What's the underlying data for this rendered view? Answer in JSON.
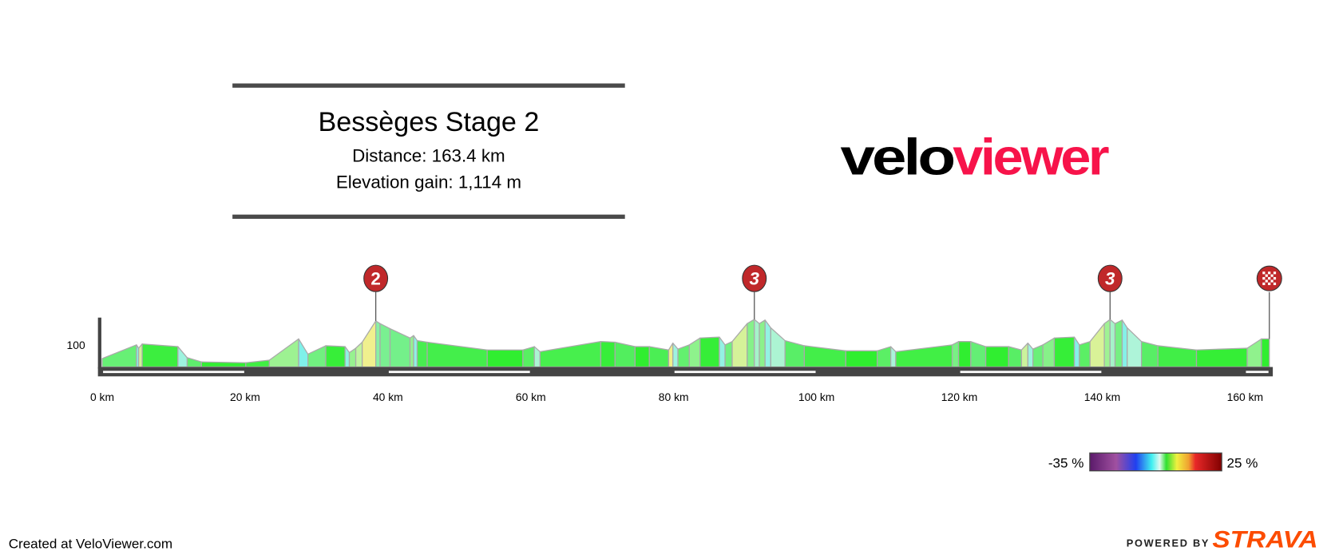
{
  "header": {
    "title": "Bessèges Stage 2",
    "distance": "Distance: 163.4 km",
    "elevation_gain": "Elevation gain: 1,114 m"
  },
  "logo": {
    "part1": "velo",
    "part2": "viewer",
    "color1": "#000000",
    "color2": "#f7134a"
  },
  "footer": {
    "created": "Created at VeloViewer.com",
    "powered_by": "POWERED BY",
    "strava": "STRAVA",
    "strava_color": "#fc4c02"
  },
  "legend": {
    "min_label": "-35 %",
    "max_label": "25 %",
    "stops": [
      "#5a1a6a",
      "#a050a0",
      "#2040f0",
      "#40f0f0",
      "#e0f8f0",
      "#30e030",
      "#f0f040",
      "#f0a030",
      "#e82828",
      "#800000"
    ]
  },
  "chart_data": {
    "type": "area",
    "title": "",
    "xlabel": "",
    "ylabel": "",
    "x_unit": "km",
    "y_unit": "m",
    "xlim": [
      0,
      163.4
    ],
    "x_ticks": [
      0,
      20,
      40,
      60,
      80,
      100,
      120,
      140,
      160
    ],
    "x_tick_labels": [
      "0 km",
      "20 km",
      "40 km",
      "60 km",
      "80 km",
      "100 km",
      "120 km",
      "140 km",
      "160 km"
    ],
    "y_tick_labels": [
      "100"
    ],
    "y_ticks": [
      100
    ],
    "color_by": "gradient %",
    "profile": [
      [
        0,
        38
      ],
      [
        4.8,
        100
      ],
      [
        5.1,
        85
      ],
      [
        5.6,
        104
      ],
      [
        10.6,
        92
      ],
      [
        11.9,
        42
      ],
      [
        13.9,
        23
      ],
      [
        20.1,
        19
      ],
      [
        23.4,
        31
      ],
      [
        27.5,
        127
      ],
      [
        28.8,
        58
      ],
      [
        31.3,
        96
      ],
      [
        34.0,
        92
      ],
      [
        34.6,
        65
      ],
      [
        35.5,
        85
      ],
      [
        36.4,
        112
      ],
      [
        38.3,
        208
      ],
      [
        38.9,
        196
      ],
      [
        40.3,
        173
      ],
      [
        43.1,
        131
      ],
      [
        43.6,
        142
      ],
      [
        44.1,
        119
      ],
      [
        45.5,
        112
      ],
      [
        53.9,
        77
      ],
      [
        58.9,
        77
      ],
      [
        60.5,
        92
      ],
      [
        61.3,
        69
      ],
      [
        69.8,
        115
      ],
      [
        71.8,
        112
      ],
      [
        74.6,
        92
      ],
      [
        76.6,
        92
      ],
      [
        79.3,
        77
      ],
      [
        79.9,
        108
      ],
      [
        80.6,
        81
      ],
      [
        82.2,
        100
      ],
      [
        83.7,
        131
      ],
      [
        86.4,
        135
      ],
      [
        87.2,
        100
      ],
      [
        88.2,
        115
      ],
      [
        90.3,
        196
      ],
      [
        91.3,
        215
      ],
      [
        92.0,
        196
      ],
      [
        92.8,
        212
      ],
      [
        93.6,
        177
      ],
      [
        95.6,
        119
      ],
      [
        98.3,
        96
      ],
      [
        104.1,
        73
      ],
      [
        108.5,
        73
      ],
      [
        110.4,
        92
      ],
      [
        111.1,
        69
      ],
      [
        119.0,
        100
      ],
      [
        119.9,
        115
      ],
      [
        121.6,
        115
      ],
      [
        123.7,
        92
      ],
      [
        126.9,
        92
      ],
      [
        128.7,
        77
      ],
      [
        129.6,
        108
      ],
      [
        130.3,
        81
      ],
      [
        131.7,
        100
      ],
      [
        133.3,
        131
      ],
      [
        136.1,
        135
      ],
      [
        136.8,
        100
      ],
      [
        138.3,
        115
      ],
      [
        140.3,
        196
      ],
      [
        141.1,
        215
      ],
      [
        141.8,
        196
      ],
      [
        142.8,
        212
      ],
      [
        143.5,
        177
      ],
      [
        145.5,
        115
      ],
      [
        147.8,
        96
      ],
      [
        153.2,
        77
      ],
      [
        160.3,
        85
      ],
      [
        162.3,
        127
      ],
      [
        163.4,
        127
      ]
    ],
    "climb_markers": [
      {
        "km": 38.3,
        "label": "2",
        "type": "category"
      },
      {
        "km": 91.3,
        "label": "3",
        "type": "category"
      },
      {
        "km": 141.1,
        "label": "3",
        "type": "category"
      },
      {
        "km": 163.4,
        "label": "",
        "type": "finish"
      }
    ],
    "marker_color": "#c0282a",
    "distance_bar_white_intervals": [
      [
        0,
        20
      ],
      [
        40,
        60
      ],
      [
        80,
        100
      ],
      [
        120,
        140
      ],
      [
        160,
        163.4
      ]
    ]
  }
}
